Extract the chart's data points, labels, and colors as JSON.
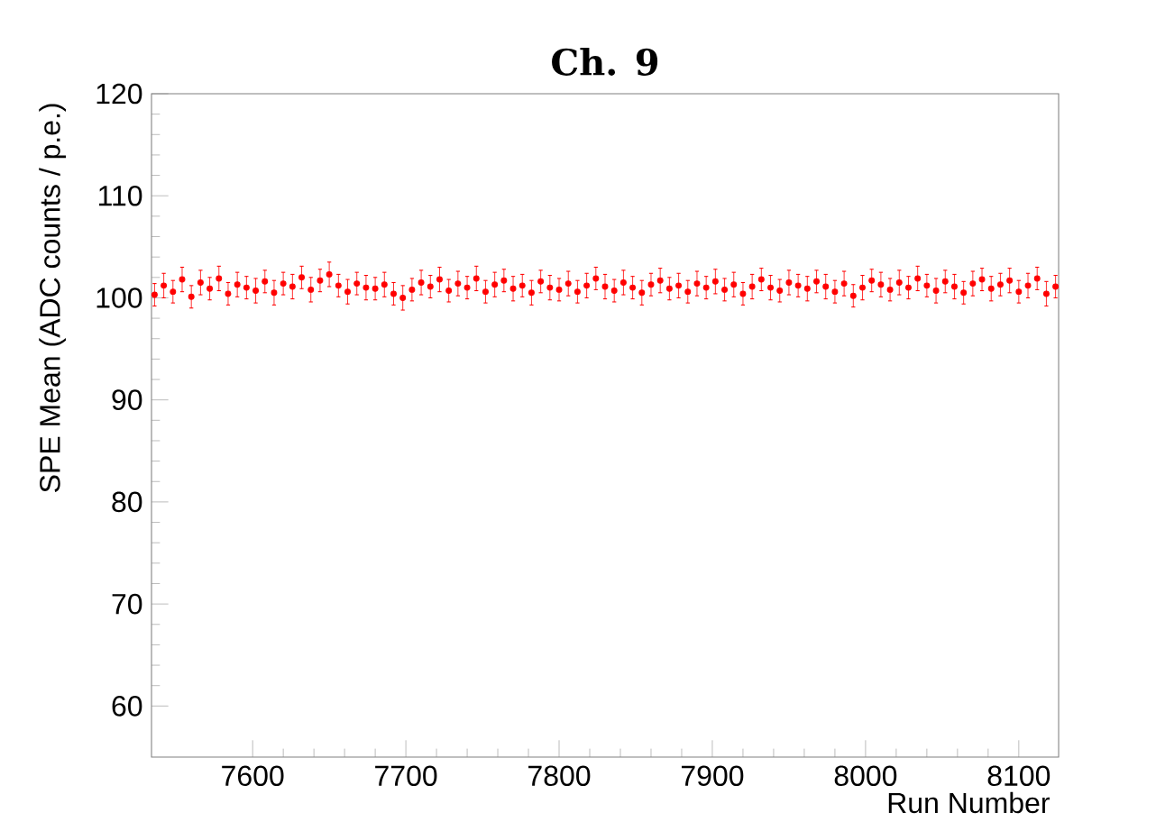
{
  "chart_data": {
    "type": "scatter",
    "title": "Ch. 9",
    "xlabel": "Run Number",
    "ylabel": "SPE Mean (ADC counts / p.e.)",
    "xlim": [
      7534,
      8126
    ],
    "ylim": [
      55,
      120
    ],
    "xticks": [
      7600,
      7700,
      7800,
      7900,
      8000,
      8100
    ],
    "yticks": [
      60,
      70,
      80,
      90,
      100,
      110,
      120
    ],
    "grid": false,
    "x": [
      7536,
      7542,
      7548,
      7554,
      7560,
      7566,
      7572,
      7578,
      7584,
      7590,
      7596,
      7602,
      7608,
      7614,
      7620,
      7626,
      7632,
      7638,
      7644,
      7650,
      7656,
      7662,
      7668,
      7674,
      7680,
      7686,
      7692,
      7698,
      7704,
      7710,
      7716,
      7722,
      7728,
      7734,
      7740,
      7746,
      7752,
      7758,
      7764,
      7770,
      7776,
      7782,
      7788,
      7794,
      7800,
      7806,
      7812,
      7818,
      7824,
      7830,
      7836,
      7842,
      7848,
      7854,
      7860,
      7866,
      7872,
      7878,
      7884,
      7890,
      7896,
      7902,
      7908,
      7914,
      7920,
      7926,
      7932,
      7938,
      7944,
      7950,
      7956,
      7962,
      7968,
      7974,
      7980,
      7986,
      7992,
      7998,
      8004,
      8010,
      8016,
      8022,
      8028,
      8034,
      8040,
      8046,
      8052,
      8058,
      8064,
      8070,
      8076,
      8082,
      8088,
      8094,
      8100,
      8106,
      8112,
      8118,
      8124
    ],
    "series": [
      {
        "color": "#ff0000",
        "values": [
          100.3,
          101.2,
          100.6,
          101.8,
          100.1,
          101.5,
          100.9,
          101.9,
          100.4,
          101.3,
          101.0,
          100.7,
          101.6,
          100.5,
          101.4,
          101.1,
          102.0,
          100.8,
          101.7,
          102.3,
          101.2,
          100.6,
          101.4,
          101.0,
          100.9,
          101.3,
          100.4,
          100.0,
          100.8,
          101.5,
          101.1,
          101.8,
          100.7,
          101.4,
          101.0,
          101.9,
          100.6,
          101.3,
          101.7,
          100.9,
          101.2,
          100.5,
          101.6,
          101.0,
          100.8,
          101.4,
          100.6,
          101.2,
          101.9,
          101.1,
          100.7,
          101.5,
          101.0,
          100.5,
          101.3,
          101.7,
          100.9,
          101.2,
          100.6,
          101.4,
          101.0,
          101.6,
          100.8,
          101.3,
          100.4,
          101.1,
          101.8,
          101.0,
          100.7,
          101.5,
          101.2,
          100.9,
          101.6,
          101.1,
          100.6,
          101.4,
          100.2,
          101.0,
          101.7,
          101.3,
          100.8,
          101.5,
          101.0,
          101.9,
          101.2,
          100.7,
          101.6,
          101.1,
          100.5,
          101.4,
          101.8,
          100.9,
          101.3,
          101.7,
          100.6,
          101.2,
          101.9,
          100.4,
          101.1
        ],
        "errors": [
          1.1,
          1.2,
          1.1,
          1.2,
          1.1,
          1.2,
          1.1,
          1.2,
          1.1,
          1.2,
          1.1,
          1.2,
          1.1,
          1.2,
          1.1,
          1.2,
          1.1,
          1.2,
          1.1,
          1.2,
          1.1,
          1.2,
          1.1,
          1.2,
          1.1,
          1.2,
          1.1,
          1.2,
          1.1,
          1.2,
          1.1,
          1.2,
          1.1,
          1.2,
          1.1,
          1.2,
          1.1,
          1.2,
          1.1,
          1.2,
          1.1,
          1.2,
          1.1,
          1.2,
          1.1,
          1.2,
          1.1,
          1.2,
          1.1,
          1.2,
          1.1,
          1.2,
          1.1,
          1.2,
          1.1,
          1.2,
          1.1,
          1.2,
          1.1,
          1.2,
          1.1,
          1.2,
          1.1,
          1.2,
          1.1,
          1.2,
          1.1,
          1.2,
          1.1,
          1.2,
          1.1,
          1.2,
          1.1,
          1.2,
          1.1,
          1.2,
          1.1,
          1.2,
          1.1,
          1.2,
          1.1,
          1.2,
          1.1,
          1.2,
          1.1,
          1.2,
          1.1,
          1.2,
          1.1,
          1.2,
          1.1,
          1.2,
          1.1,
          1.2,
          1.1,
          1.2,
          1.1,
          1.2,
          1.1
        ]
      }
    ]
  }
}
